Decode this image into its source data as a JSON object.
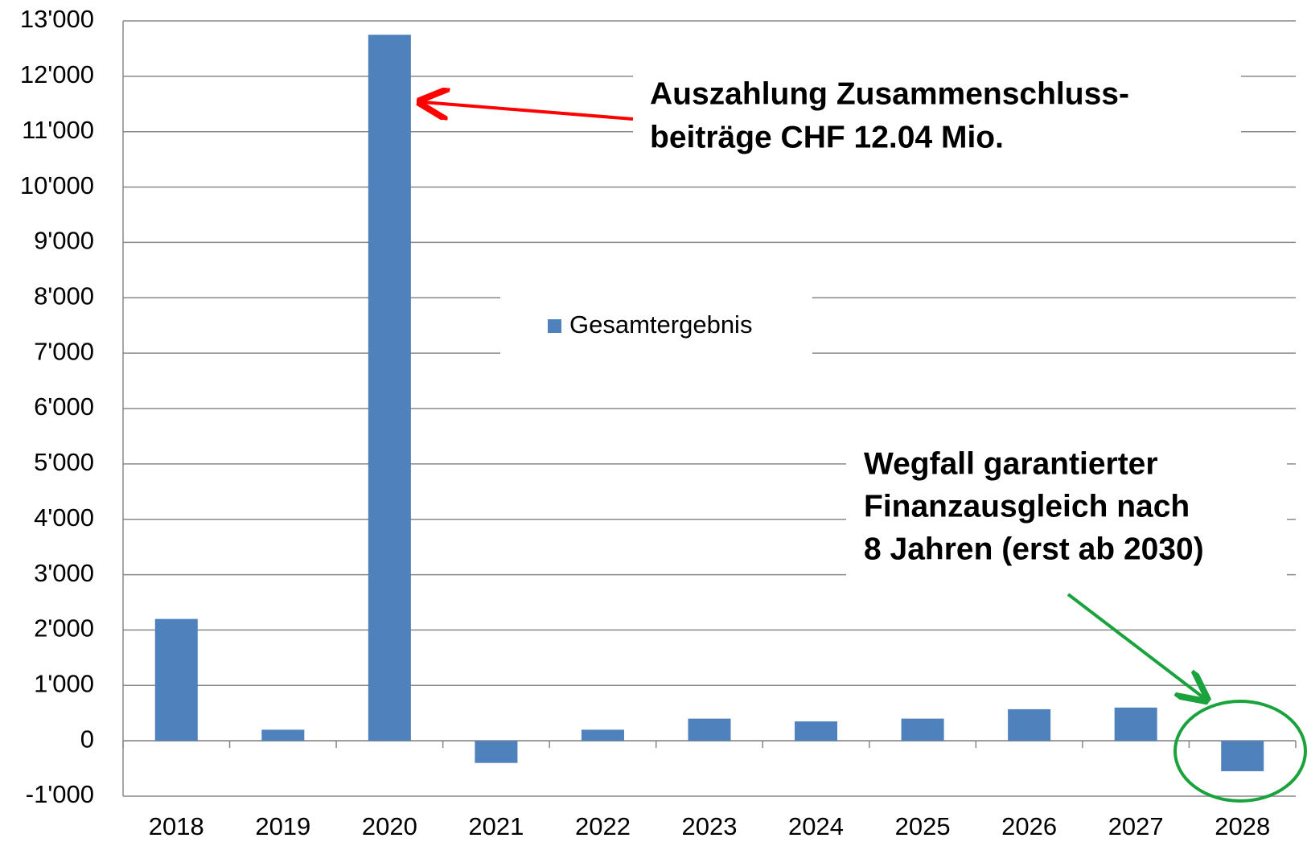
{
  "chart_data": {
    "type": "bar",
    "categories": [
      "2018",
      "2019",
      "2020",
      "2021",
      "2022",
      "2023",
      "2024",
      "2025",
      "2026",
      "2027",
      "2028"
    ],
    "series": [
      {
        "name": "Gesamtergebnis",
        "color": "#4f81bd",
        "values": [
          2200,
          200,
          12750,
          -400,
          200,
          400,
          350,
          400,
          570,
          600,
          -550
        ]
      }
    ],
    "ylim": [
      -1000,
      13000
    ],
    "yticks": [
      {
        "value": -1000,
        "label": "-1'000"
      },
      0,
      {
        "value": 1000,
        "label": "1'000"
      },
      {
        "value": 2000,
        "label": "2'000"
      },
      {
        "value": 3000,
        "label": "3'000"
      },
      {
        "value": 4000,
        "label": "4'000"
      },
      {
        "value": 5000,
        "label": "5'000"
      },
      {
        "value": 6000,
        "label": "6'000"
      },
      {
        "value": 7000,
        "label": "7'000"
      },
      {
        "value": 8000,
        "label": "8'000"
      },
      {
        "value": 9000,
        "label": "9'000"
      },
      {
        "value": 10000,
        "label": "10'000"
      },
      {
        "value": 11000,
        "label": "11'000"
      },
      {
        "value": 12000,
        "label": "12'000"
      },
      {
        "value": 13000,
        "label": "13'000"
      }
    ],
    "negative_tick_color": "#ff0000",
    "grid": true,
    "annotations": [
      {
        "lines": [
          "Auszahlung Zusammenschluss-",
          "beiträge CHF 12.04 Mio."
        ],
        "color": "#ff0000"
      },
      {
        "lines": [
          "Wegfall garantierter",
          "Finanzausgleich nach",
          "8 Jahren (erst ab 2030)"
        ],
        "color": "#1aa33c"
      }
    ]
  }
}
